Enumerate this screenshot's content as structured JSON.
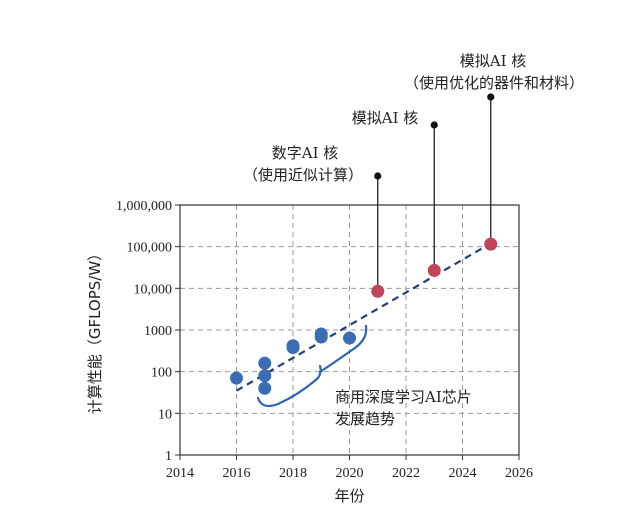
{
  "chart_data": {
    "type": "scatter",
    "xlabel": "年份",
    "ylabel": "计算性能（GFLOPS/W）",
    "xlim": [
      2014,
      2026
    ],
    "ylim": [
      1,
      1000000
    ],
    "y_scale": "log",
    "grid": true,
    "x_ticks": [
      "2014",
      "2016",
      "2018",
      "2020",
      "2022",
      "2024",
      "2026"
    ],
    "y_ticks": [
      "1",
      "10",
      "100",
      "1000",
      "10,000",
      "100,000",
      "1,000,000"
    ],
    "series": [
      {
        "color": "#3b6db5",
        "points": [
          {
            "x": 2016,
            "y": 70
          },
          {
            "x": 2017,
            "y": 160
          },
          {
            "x": 2017,
            "y": 80
          },
          {
            "x": 2017,
            "y": 40
          },
          {
            "x": 2018,
            "y": 420
          },
          {
            "x": 2018,
            "y": 380
          },
          {
            "x": 2019,
            "y": 800
          },
          {
            "x": 2019,
            "y": 680
          },
          {
            "x": 2020,
            "y": 640
          }
        ]
      },
      {
        "color": "#c0455a",
        "points": [
          {
            "x": 2021,
            "y": 8500
          },
          {
            "x": 2023,
            "y": 27000
          },
          {
            "x": 2025,
            "y": 115000
          }
        ]
      }
    ],
    "trend_line": {
      "x": [
        2016,
        2025
      ],
      "y": [
        35,
        120000
      ],
      "color": "#1f3f7a",
      "style": "dashed"
    },
    "annotations": [
      {
        "lines": [
          "数字AI 核",
          "（使用近似计算）"
        ],
        "target": {
          "x": 2021,
          "y": 8500
        }
      },
      {
        "lines": [
          "模拟AI 核"
        ],
        "target": {
          "x": 2023,
          "y": 27000
        }
      },
      {
        "lines": [
          "模拟AI 核",
          "（使用优化的器件和材料）"
        ],
        "target": {
          "x": 2025,
          "y": 115000
        }
      },
      {
        "lines": [
          "商用深度学习AI芯片",
          "发展趋势"
        ]
      }
    ]
  }
}
